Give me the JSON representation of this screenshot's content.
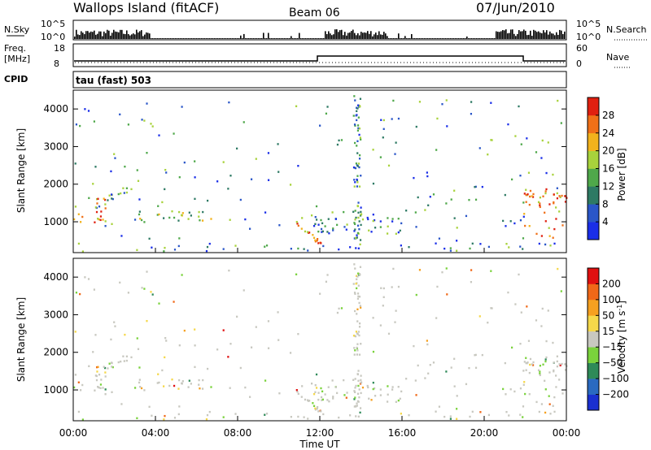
{
  "header": {
    "station": "Wallops Island (fitACF)",
    "beam": "Beam 06",
    "date": "07/Jun/2010"
  },
  "top_panels": {
    "nsky_label": "N.Sky",
    "nsearch_label": "N.Search",
    "left_ticks": [
      "10^5",
      "10^0"
    ],
    "right_ticks": [
      "10^5",
      "10^0"
    ],
    "freq_label_line1": "Freq.",
    "freq_label_line2": "[MHz]",
    "freq_ticks": [
      "18",
      "8"
    ],
    "nave_label": "Nave",
    "nave_ticks": [
      "60",
      "0"
    ],
    "cpid_label": "CPID",
    "cpid_value": "tau (fast) 503"
  },
  "chart_data": [
    {
      "type": "heatmap",
      "panel": "power",
      "ylabel": "Slant Range [km]",
      "yticks": [
        "1000",
        "2000",
        "3000",
        "4000"
      ],
      "ylim": [
        180,
        4500
      ],
      "xlim_hours": [
        0,
        24
      ],
      "colorbar": {
        "label": "Power [dB]",
        "ticks": [
          "4",
          "8",
          "12",
          "16",
          "20",
          "24",
          "28"
        ],
        "colors": [
          "#1a2ee8",
          "#2a56c8",
          "#2e7a64",
          "#4fa84a",
          "#a8d23c",
          "#f2b21c",
          "#f07018",
          "#e02010"
        ]
      },
      "regions": [
        {
          "t": [
            0.0,
            1.6
          ],
          "r": [
            1000,
            1700
          ],
          "level": "high"
        },
        {
          "t": [
            1.0,
            2.8
          ],
          "r": [
            1500,
            2000
          ],
          "level": "mid"
        },
        {
          "t": [
            2.8,
            6.8
          ],
          "r": [
            1000,
            1350
          ],
          "level": "mid"
        },
        {
          "t": [
            10.8,
            12.2
          ],
          "r": [
            300,
            1000
          ],
          "level": "high"
        },
        {
          "t": [
            11.5,
            16.0
          ],
          "r": [
            700,
            1300
          ],
          "level": "low"
        },
        {
          "t": [
            21.9,
            24.0
          ],
          "r": [
            600,
            1900
          ],
          "level": "high"
        },
        {
          "t": [
            0.0,
            24.0
          ],
          "r": [
            180,
            450
          ],
          "level": "low"
        }
      ]
    },
    {
      "type": "heatmap",
      "panel": "velocity",
      "ylabel": "Slant Range [km]",
      "yticks": [
        "1000",
        "2000",
        "3000",
        "4000"
      ],
      "ylim": [
        180,
        4500
      ],
      "xlim_hours": [
        0,
        24
      ],
      "xlabel": "Time UT",
      "xticks": [
        "00:00",
        "04:00",
        "08:00",
        "12:00",
        "16:00",
        "20:00",
        "00:00"
      ],
      "colorbar": {
        "label": "Velocity [m s",
        "label_sup": "-1",
        "label_end": "]",
        "ticks": [
          "200",
          "100",
          "50",
          "15",
          "-15",
          "-50",
          "-100",
          "-200"
        ],
        "colors": [
          "#1a30d0",
          "#2a6ac0",
          "#2e8a58",
          "#7ad23c",
          "#c8c8c0",
          "#f5d84a",
          "#f5a020",
          "#f06818",
          "#e01010"
        ]
      }
    }
  ]
}
